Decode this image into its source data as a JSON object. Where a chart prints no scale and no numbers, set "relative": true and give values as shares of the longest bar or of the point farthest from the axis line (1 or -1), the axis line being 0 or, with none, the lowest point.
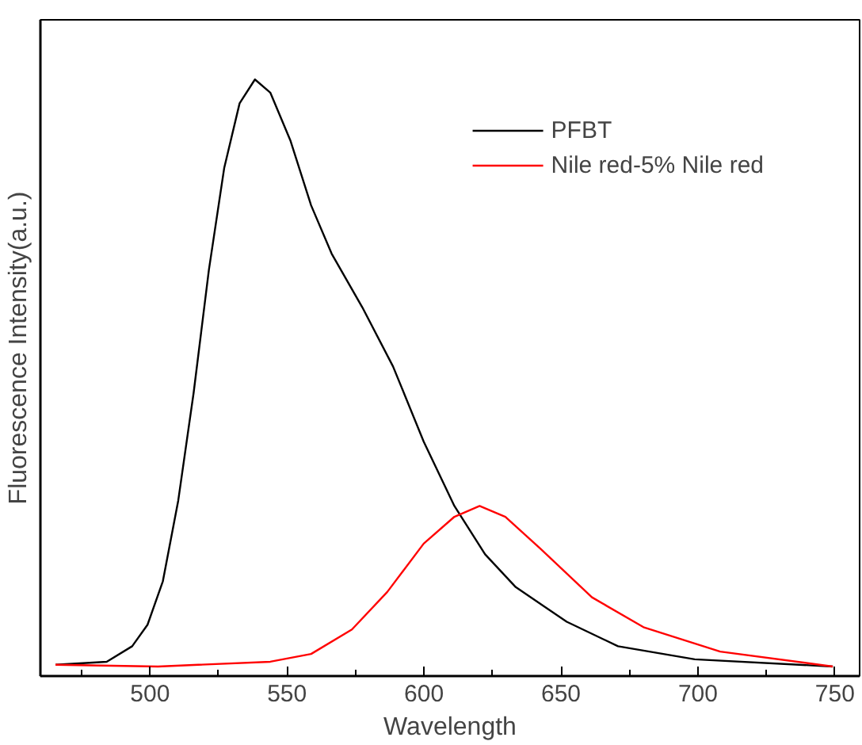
{
  "chart_data": {
    "type": "line",
    "relative": true,
    "xlabel": "Wavelength",
    "ylabel": "Fluorescence Intensity(a.u.)",
    "xlim": [
      460,
      759
    ],
    "xticks": [
      500,
      550,
      600,
      650,
      700,
      750
    ],
    "grid": false,
    "legend": "top right",
    "marker": "none",
    "line_style": "solid",
    "series": [
      {
        "name": "PFBT",
        "color": "#000000",
        "x": [
          465.5,
          484.2,
          493.5,
          499.1,
          504.7,
          510.3,
          515.9,
          521.5,
          527.1,
          532.7,
          538.3,
          543.9,
          551.3,
          558.8,
          566.3,
          577.5,
          588.7,
          599.9,
          611.1,
          622.3,
          633.5,
          652.1,
          670.8,
          698.8,
          749.2
        ],
        "values": [
          0.019,
          0.024,
          0.05,
          0.086,
          0.159,
          0.294,
          0.474,
          0.681,
          0.852,
          0.96,
          1.0,
          0.978,
          0.897,
          0.789,
          0.708,
          0.618,
          0.519,
          0.393,
          0.285,
          0.204,
          0.149,
          0.091,
          0.05,
          0.028,
          0.016
        ]
      },
      {
        "name": "Nile red-5% Nile red",
        "color": "#ff0000",
        "x": [
          465.5,
          502.9,
          543.9,
          558.8,
          573.7,
          586.6,
          599.9,
          611.1,
          620.3,
          629.7,
          642.6,
          661.3,
          680.1,
          708.1,
          749.2
        ],
        "values": [
          0.019,
          0.016,
          0.024,
          0.037,
          0.078,
          0.141,
          0.222,
          0.267,
          0.285,
          0.267,
          0.213,
          0.132,
          0.082,
          0.041,
          0.016
        ]
      }
    ]
  }
}
